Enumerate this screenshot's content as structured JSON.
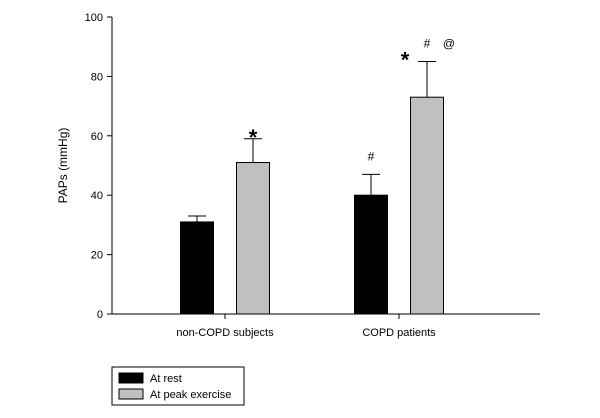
{
  "chart_data": {
    "type": "bar",
    "title": "",
    "xlabel": "",
    "ylabel": "PAPs (mmHg)",
    "ylim": [
      0,
      100
    ],
    "yticks": [
      0,
      20,
      40,
      60,
      80,
      100
    ],
    "categories": [
      "non-COPD subjects",
      "COPD patients"
    ],
    "series": [
      {
        "name": "At rest",
        "values": [
          31,
          40
        ],
        "errors": [
          2,
          7
        ],
        "color": "#000000"
      },
      {
        "name": "At peak exercise",
        "values": [
          51,
          73
        ],
        "errors": [
          8,
          12
        ],
        "color": "#c0c0c0"
      }
    ],
    "annotations": [
      {
        "category": 0,
        "series": 1,
        "marks": [
          "*"
        ]
      },
      {
        "category": 1,
        "series": 0,
        "marks": [
          "#"
        ]
      },
      {
        "category": 1,
        "series": 1,
        "marks": [
          "*",
          "#",
          "@"
        ]
      }
    ],
    "legend_position": "bottom-left",
    "grid": false
  }
}
